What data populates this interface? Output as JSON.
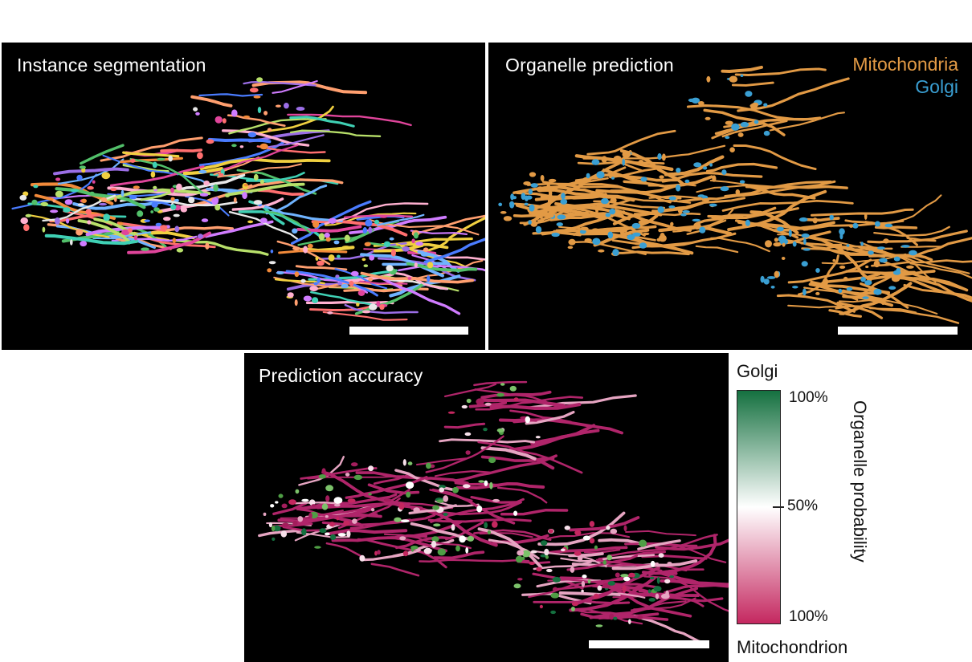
{
  "panels": {
    "instance": {
      "title": "Instance segmentation"
    },
    "organelle": {
      "title": "Organelle prediction",
      "legend": [
        {
          "label": "Mitochondria",
          "color": "#e29a45"
        },
        {
          "label": "Golgi",
          "color": "#3a9fd3"
        }
      ]
    },
    "accuracy": {
      "title": "Prediction accuracy"
    }
  },
  "colorbar": {
    "top_label": "Golgi",
    "bottom_label": "Mitochondrion",
    "axis_label": "Organelle probability",
    "ticks": [
      "100%",
      "50%",
      "100%"
    ],
    "colors": {
      "golgi": "#14703f",
      "mid": "#ffffff",
      "mitochondrion": "#c4275f"
    }
  }
}
